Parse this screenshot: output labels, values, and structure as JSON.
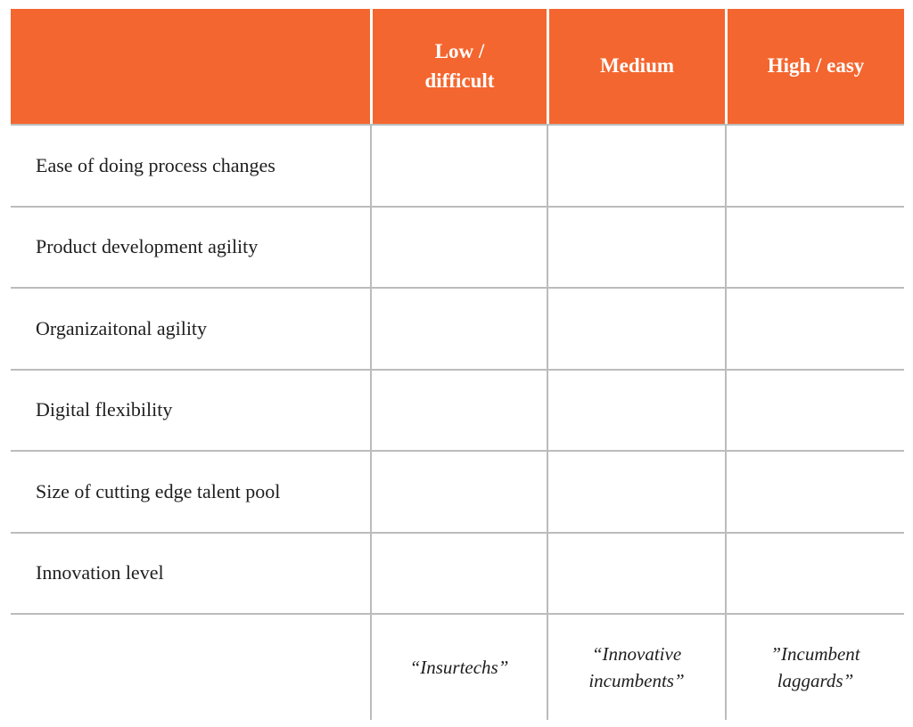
{
  "table": {
    "corner_label": "",
    "columns": [
      "Low / difficult",
      "Medium",
      "High / easy"
    ],
    "rows": [
      {
        "label": "Ease of doing process changes",
        "cells": [
          "",
          "",
          ""
        ]
      },
      {
        "label": "Product development agility",
        "cells": [
          "",
          "",
          ""
        ]
      },
      {
        "label": "Organizaitonal agility",
        "cells": [
          "",
          "",
          ""
        ]
      },
      {
        "label": "Digital flexibility",
        "cells": [
          "",
          "",
          ""
        ]
      },
      {
        "label": "Size of cutting edge talent pool",
        "cells": [
          "",
          "",
          ""
        ]
      },
      {
        "label": "Innovation level",
        "cells": [
          "",
          "",
          ""
        ]
      }
    ],
    "footer": {
      "labels": [
        "“Insurtechs”",
        "“Innovative incumbents”",
        "”Incumbent laggards”"
      ]
    }
  },
  "colors": {
    "header_background": "#F4662F",
    "header_text": "#FFFFFF",
    "grid_line": "#BCBCBC",
    "body_text": "#1E1E1E",
    "page_background": "#FFFFFF"
  }
}
